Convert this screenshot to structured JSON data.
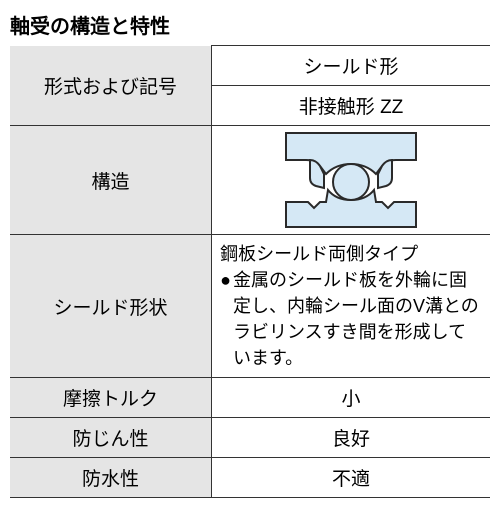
{
  "title": "軸受の構造と特性",
  "rows": {
    "format_symbol": {
      "label": "形式および記号",
      "line1": "シールド形",
      "line2": "非接触形 ZZ"
    },
    "structure": {
      "label": "構造"
    },
    "shield_shape": {
      "label": "シールド形状",
      "desc_line1": "鋼板シールド両側タイプ",
      "bullet": "●",
      "desc_bullet": "金属のシールド板を外輪に固定し、内輪シール面のV溝とのラビリンスすき間を形成しています。"
    },
    "friction": {
      "label": "摩擦トルク",
      "value": "小"
    },
    "dust": {
      "label": "防じん性",
      "value": "良好"
    },
    "water": {
      "label": "防水性",
      "value": "不適"
    }
  },
  "style": {
    "title_fontsize": 20,
    "label_fontsize": 19,
    "value_fontsize": 19,
    "desc_fontsize": 18,
    "col1_width": 42,
    "col2_width": 58,
    "diagram": {
      "bg": "#d5e8f5",
      "stroke": "#2a2a2a",
      "stroke_width": 2
    }
  }
}
